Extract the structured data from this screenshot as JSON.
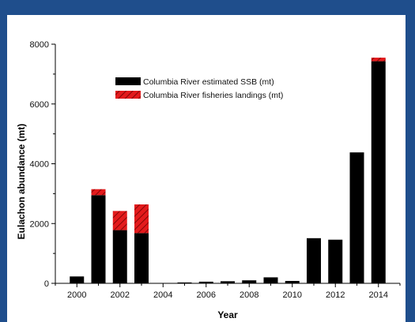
{
  "chart_data": {
    "type": "bar",
    "stacked": true,
    "xlabel": "Year",
    "ylabel": "Eulachon abundance (mt)",
    "ylim": [
      0,
      8000
    ],
    "yticks": [
      0,
      2000,
      4000,
      6000,
      8000
    ],
    "xlim": [
      1999,
      2015
    ],
    "xticks": [
      2000,
      2002,
      2004,
      2006,
      2008,
      2010,
      2012,
      2014
    ],
    "legend_position": "top-center",
    "grid": false,
    "x": [
      2000,
      2001,
      2002,
      2003,
      2004,
      2005,
      2006,
      2007,
      2008,
      2009,
      2010,
      2011,
      2012,
      2013,
      2014
    ],
    "series": [
      {
        "name": "Columbia River estimated SSB (mt)",
        "color": "#000000",
        "values": [
          230,
          2950,
          1780,
          1680,
          0,
          30,
          55,
          70,
          100,
          200,
          80,
          1510,
          1460,
          4380,
          7430
        ]
      },
      {
        "name": "Columbia River fisheries landings (mt)",
        "color": "#e31a1c",
        "pattern": "hatched",
        "values": [
          0,
          200,
          640,
          960,
          0,
          0,
          0,
          0,
          0,
          0,
          0,
          0,
          0,
          0,
          120
        ]
      }
    ]
  }
}
